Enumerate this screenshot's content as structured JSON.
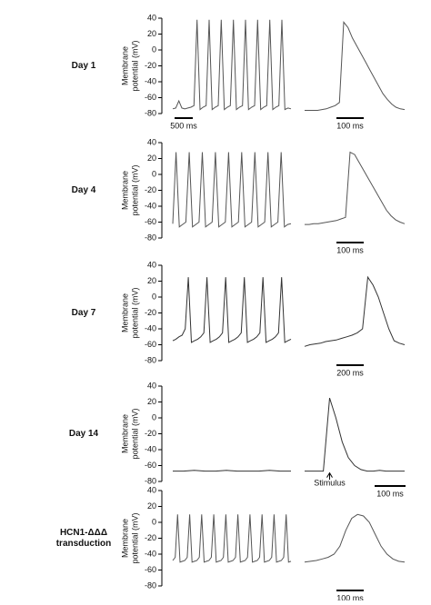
{
  "chart_data": [
    {
      "type": "line",
      "label": [
        "Day 1"
      ],
      "ylabel": [
        "Membrane",
        "potential (mV)"
      ],
      "ylim": [
        -80,
        40
      ],
      "yticks": [
        40,
        20,
        0,
        -20,
        -40,
        -60,
        -80
      ],
      "color": "#555555",
      "trace": {
        "values": [
          -74,
          -73,
          -64,
          -73,
          -74,
          -73,
          -72,
          -70,
          38,
          -75,
          -72,
          -70,
          38,
          -75,
          -72,
          -70,
          38,
          -75,
          -72,
          -70,
          38,
          -75,
          -72,
          -70,
          38,
          -75,
          -72,
          -70,
          38,
          -75,
          -72,
          -70,
          38,
          -75,
          -72,
          -70,
          38,
          -75,
          -73,
          -74
        ],
        "scale_label": "500 ms"
      },
      "zoom": {
        "values": [
          -76,
          -76,
          -76,
          -76,
          -75,
          -74,
          -72,
          -70,
          -66,
          35,
          28,
          15,
          5,
          -5,
          -15,
          -25,
          -35,
          -45,
          -55,
          -62,
          -68,
          -72,
          -74,
          -75
        ],
        "scale_label": "100 ms"
      }
    },
    {
      "type": "line",
      "label": [
        "Day 4"
      ],
      "ylabel": [
        "Membrane",
        "potential (mV)"
      ],
      "ylim": [
        -80,
        40
      ],
      "yticks": [
        40,
        20,
        0,
        -20,
        -40,
        -60,
        -80
      ],
      "color": "#555555",
      "trace": {
        "values": [
          -62,
          28,
          -66,
          -63,
          -60,
          28,
          -66,
          -63,
          -60,
          28,
          -66,
          -63,
          -60,
          28,
          -66,
          -63,
          -60,
          28,
          -66,
          -63,
          -60,
          28,
          -66,
          -63,
          -60,
          28,
          -66,
          -63,
          -60,
          28,
          -66,
          -63,
          -60,
          28,
          -66,
          -63,
          -62
        ]
      },
      "zoom": {
        "values": [
          -63,
          -63,
          -62,
          -62,
          -61,
          -60,
          -59,
          -58,
          -56,
          -54,
          28,
          25,
          15,
          5,
          -5,
          -15,
          -25,
          -35,
          -45,
          -52,
          -57,
          -60,
          -62
        ],
        "scale_label": "100 ms"
      }
    },
    {
      "type": "line",
      "label": [
        "Day 7"
      ],
      "ylabel": [
        "Membrane",
        "potential (mV)"
      ],
      "ylim": [
        -80,
        40
      ],
      "yticks": [
        40,
        20,
        0,
        -20,
        -40,
        -60,
        -80
      ],
      "color": "#333333",
      "trace": {
        "values": [
          -55,
          -53,
          -50,
          -48,
          -40,
          25,
          -57,
          -55,
          -53,
          -50,
          -45,
          25,
          -57,
          -55,
          -53,
          -50,
          -45,
          25,
          -57,
          -55,
          -53,
          -50,
          -45,
          25,
          -57,
          -55,
          -53,
          -50,
          -45,
          25,
          -57,
          -55,
          -53,
          -50,
          -45,
          25,
          -57,
          -55,
          -53
        ]
      },
      "zoom": {
        "values": [
          -62,
          -60,
          -59,
          -58,
          -56,
          -55,
          -54,
          -52,
          -50,
          -48,
          -45,
          -40,
          25,
          15,
          0,
          -20,
          -40,
          -55,
          -58,
          -60
        ],
        "scale_label": "200 ms"
      }
    },
    {
      "type": "line",
      "label": [
        "Day 14"
      ],
      "ylabel": [
        "Membrane",
        "potential (mV)"
      ],
      "ylim": [
        -80,
        40
      ],
      "yticks": [
        40,
        20,
        0,
        -20,
        -40,
        -60,
        -80
      ],
      "color": "#333333",
      "trace": {
        "values": [
          -67,
          -67,
          -66,
          -67,
          -67,
          -66,
          -67,
          -67,
          -67,
          -66,
          -67,
          -67
        ]
      },
      "zoom": {
        "values": [
          -67,
          -67,
          -67,
          -67,
          25,
          0,
          -30,
          -50,
          -60,
          -65,
          -67,
          -67,
          -66,
          -67,
          -67,
          -67,
          -67
        ],
        "scale_label": "100 ms",
        "annotation": "Stimulus"
      }
    },
    {
      "type": "line",
      "label": [
        "HCN1-ΔΔΔ",
        "transduction"
      ],
      "ylabel": [
        "Membrane",
        "potential (mV)"
      ],
      "ylim": [
        -80,
        40
      ],
      "yticks": [
        40,
        20,
        0,
        -20,
        -40,
        -60,
        -80
      ],
      "color": "#555555",
      "trace": {
        "values": [
          -48,
          -44,
          10,
          -50,
          -49,
          -48,
          -44,
          10,
          -50,
          -49,
          -48,
          -44,
          10,
          -50,
          -49,
          -48,
          -44,
          10,
          -50,
          -49,
          -48,
          -44,
          10,
          -50,
          -49,
          -48,
          -44,
          10,
          -50,
          -49,
          -48,
          -44,
          10,
          -50,
          -49,
          -48,
          -44,
          10,
          -50,
          -49,
          -48,
          -44,
          10,
          -50,
          -49,
          -48,
          -44,
          10,
          -50,
          -49
        ]
      },
      "zoom": {
        "values": [
          -50,
          -49,
          -48,
          -46,
          -44,
          -40,
          -30,
          -10,
          5,
          10,
          8,
          0,
          -15,
          -30,
          -40,
          -46,
          -49,
          -50
        ],
        "scale_label": "100 ms"
      }
    }
  ]
}
